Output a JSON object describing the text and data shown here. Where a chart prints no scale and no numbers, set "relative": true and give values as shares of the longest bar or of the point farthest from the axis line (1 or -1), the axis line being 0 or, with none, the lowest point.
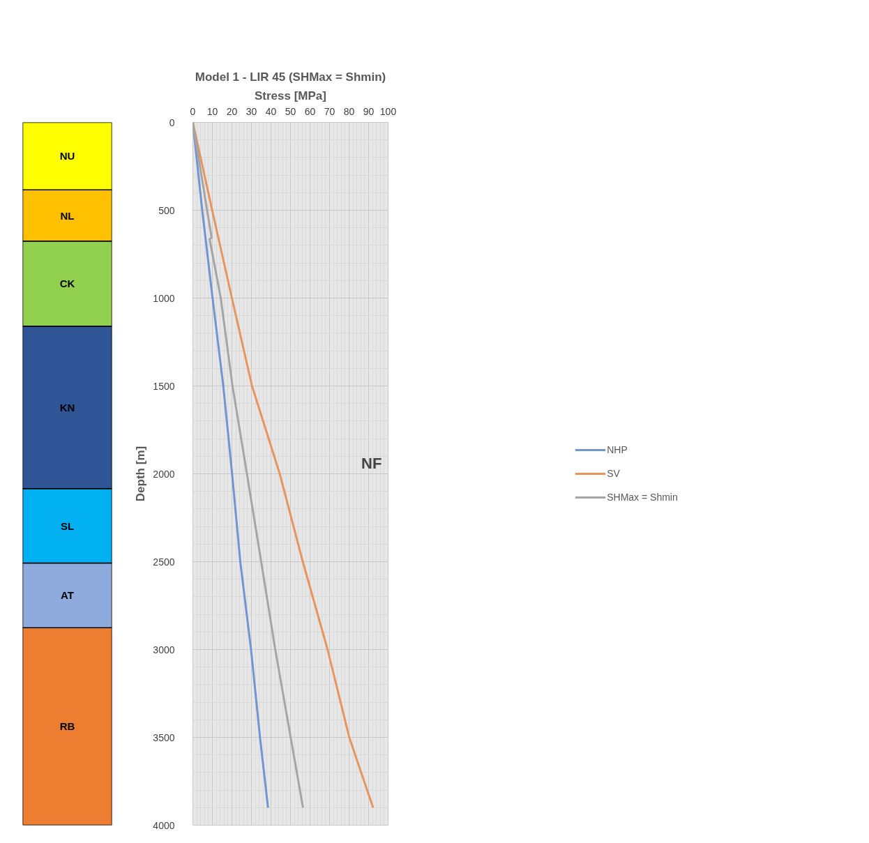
{
  "chart_data": [
    {
      "type": "bar",
      "stacked": true,
      "relative": true,
      "categories": [
        null
      ],
      "series": [
        {
          "name": "RB",
          "color": "#ed7d31",
          "values": [
            0.281
          ]
        },
        {
          "name": "AT",
          "color": "#8faadc",
          "values": [
            0.092
          ]
        },
        {
          "name": "SL",
          "color": "#00b0f0",
          "values": [
            0.106
          ]
        },
        {
          "name": "KN",
          "color": "#2f5597",
          "values": [
            0.231
          ]
        },
        {
          "name": "CK",
          "color": "#92d050",
          "values": [
            0.121
          ]
        },
        {
          "name": "NL",
          "color": "#ffc000",
          "values": [
            0.073
          ]
        },
        {
          "name": "NU",
          "color": "#ffff00",
          "values": [
            0.096
          ]
        }
      ]
    },
    {
      "type": "line",
      "title": "Model 1 - LIR 45 (SHMax = Shmin)",
      "xlabel": "Stress [MPa]",
      "ylabel": "Depth [m]",
      "annotations": [
        "NF"
      ],
      "grid": true,
      "legend": "right",
      "xlim": [
        0,
        100
      ],
      "xticks": [
        0,
        10,
        20,
        30,
        40,
        50,
        60,
        70,
        80,
        90,
        100
      ],
      "ylim": [
        4000,
        0
      ],
      "yticks": [
        0,
        500,
        1000,
        1500,
        2000,
        2500,
        3000,
        3500,
        4000
      ],
      "series": [
        {
          "name": "NHP",
          "color": "#7394d0",
          "x": [
            0,
            4.8,
            10.1,
            15.6,
            20.1,
            24.3,
            29.8,
            34.4,
            38.5
          ],
          "values": [
            0,
            500,
            1000,
            1500,
            2000,
            2500,
            3000,
            3500,
            3900
          ]
        },
        {
          "name": "SV",
          "color": "#e8945e",
          "x": [
            0,
            9.9,
            20,
            30.3,
            44.5,
            56.3,
            69,
            80.1,
            92.3
          ],
          "values": [
            0,
            500,
            1000,
            1500,
            2000,
            2500,
            3000,
            3500,
            3900
          ]
        },
        {
          "name": "SHMax = Shmin",
          "color": "#a5a5a5",
          "x": [
            0,
            7.3,
            9.6,
            8.6,
            14.3,
            20.3,
            27.7,
            35,
            42.2,
            50.1,
            56.4
          ],
          "values": [
            0,
            500,
            655,
            665,
            1000,
            1500,
            2000,
            2500,
            3000,
            3500,
            3900
          ]
        }
      ]
    }
  ]
}
